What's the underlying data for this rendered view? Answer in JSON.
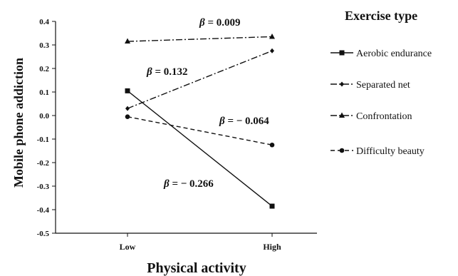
{
  "chart_data": {
    "type": "line",
    "categories": [
      "Low",
      "High"
    ],
    "xlabel": "Physical activity",
    "ylabel": "Mobile phone addiction",
    "ylim": [
      -0.5,
      0.4
    ],
    "yticks": [
      "0.4",
      "0.3",
      "0.2",
      "0.1",
      "0.0",
      "-0.1",
      "-0.2",
      "-0.3",
      "-0.4",
      "-0.5"
    ],
    "legend_title": "Exercise type",
    "legend_position": "right",
    "grid": false,
    "series": [
      {
        "name": "Aerobic endurance",
        "values": [
          0.105,
          -0.385
        ],
        "marker": "square",
        "dash": "solid",
        "beta_symbol": "β",
        "beta_text": " = − 0.266"
      },
      {
        "name": "Separated net",
        "values": [
          0.03,
          0.275
        ],
        "marker": "diamond",
        "dash": "dashdot",
        "beta_symbol": "β",
        "beta_text": " = 0.132"
      },
      {
        "name": "Confrontation",
        "values": [
          0.315,
          0.335
        ],
        "marker": "triangle",
        "dash": "dashdot",
        "beta_symbol": "β",
        "beta_text": " = 0.009"
      },
      {
        "name": "Difficulty beauty",
        "values": [
          -0.005,
          -0.125
        ],
        "marker": "circle",
        "dash": "dashed",
        "beta_symbol": "β",
        "beta_text": " = − 0.064"
      }
    ]
  }
}
